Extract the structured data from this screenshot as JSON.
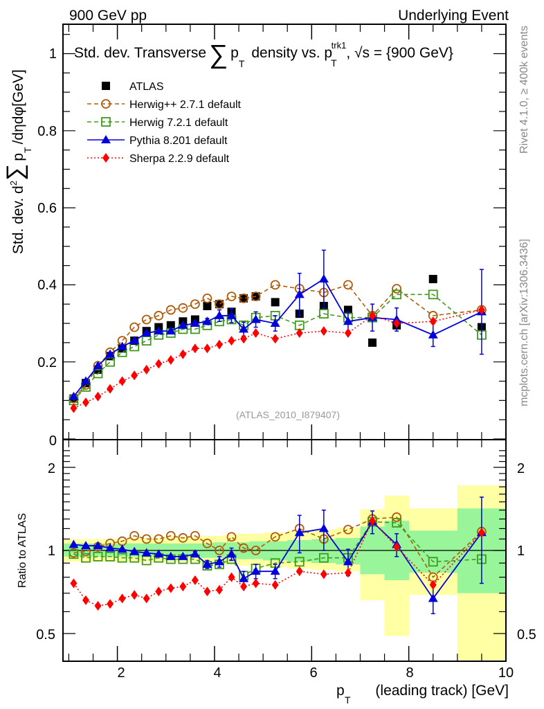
{
  "header": {
    "left": "900 GeV pp",
    "right": "Underlying Event"
  },
  "side_text": {
    "rivet": "Rivet 4.1.0, ≥ 400k events",
    "mcplots": "mcplots.cern.ch [arXiv:1306.3436]"
  },
  "chart_data": [
    {
      "type": "scatter",
      "panel": "main",
      "title": "Std. dev. Transverse ∑ p_T density vs. p_T^trk1, √s = {900 GeV}",
      "title_parts": {
        "a": "Std. dev. Transverse",
        "sum": "∑",
        "b": "p",
        "b_sub": "T",
        "c": "density vs. p",
        "c_sub": "T",
        "c_sup": "trk1",
        "d": ", √s = {900 GeV}"
      },
      "ylabel": "Std. dev. d²∑ p_T /dηdφ[GeV]",
      "ylabel_parts": {
        "a": "Std. dev. d",
        "sup": "2",
        "sum": "∑",
        "b": "p",
        "sub": "T",
        "c": "/dηdφ[GeV]"
      },
      "watermark": "(ATLAS_2010_I879407)",
      "xlim": [
        0.88,
        10.0
      ],
      "ylim": [
        0,
        1.08
      ],
      "yticks": [
        0,
        0.2,
        0.4,
        0.6,
        0.8,
        1
      ],
      "ytick_labels": [
        "0",
        "0.2",
        "0.4",
        "0.6",
        "0.8",
        "1"
      ],
      "legend_position": "top-left",
      "x": [
        1.1,
        1.35,
        1.6,
        1.85,
        2.1,
        2.35,
        2.6,
        2.85,
        3.1,
        3.35,
        3.6,
        3.85,
        4.1,
        4.35,
        4.6,
        4.85,
        5.25,
        5.75,
        6.25,
        6.75,
        7.25,
        7.75,
        8.5,
        9.5
      ],
      "series": [
        {
          "name": "ATLAS",
          "style": "data",
          "color": "#000000",
          "marker": "square-filled",
          "values": [
            0.105,
            0.145,
            0.18,
            0.215,
            0.235,
            0.255,
            0.28,
            0.29,
            0.295,
            0.305,
            0.31,
            0.345,
            0.35,
            0.33,
            0.365,
            0.37,
            0.355,
            0.325,
            0.345,
            0.335,
            0.25,
            0.295,
            0.415,
            0.29
          ]
        },
        {
          "name": "Herwig++ 2.7.1 default",
          "color": "#b05a0a",
          "marker": "circle-open",
          "line": "dashed",
          "values": [
            0.105,
            0.14,
            0.19,
            0.225,
            0.255,
            0.29,
            0.31,
            0.32,
            0.335,
            0.34,
            0.35,
            0.365,
            0.35,
            0.37,
            0.365,
            0.37,
            0.4,
            0.39,
            0.38,
            0.4,
            0.32,
            0.39,
            0.32,
            0.335
          ]
        },
        {
          "name": "Herwig 7.2.1 default",
          "color": "#3e9b1a",
          "marker": "square-open",
          "line": "dashed",
          "values": [
            0.1,
            0.135,
            0.17,
            0.2,
            0.225,
            0.24,
            0.255,
            0.27,
            0.275,
            0.285,
            0.285,
            0.295,
            0.305,
            0.31,
            0.295,
            0.315,
            0.32,
            0.295,
            0.325,
            0.315,
            0.315,
            0.375,
            0.375,
            0.27
          ]
        },
        {
          "name": "Pythia 8.201 default",
          "color": "#0000dd",
          "marker": "triangle-filled",
          "line": "solid",
          "values": [
            0.11,
            0.15,
            0.19,
            0.22,
            0.24,
            0.255,
            0.275,
            0.28,
            0.28,
            0.295,
            0.3,
            0.305,
            0.32,
            0.32,
            0.285,
            0.31,
            0.3,
            0.375,
            0.415,
            0.305,
            0.315,
            0.31,
            0.27,
            0.33
          ],
          "errors": [
            0,
            0,
            0,
            0,
            0,
            0,
            0,
            0,
            0,
            0,
            0,
            0.008,
            0.015,
            0.018,
            0.018,
            0.02,
            0.02,
            0.055,
            0.075,
            0.025,
            0.035,
            0.03,
            0.03,
            0.11
          ]
        },
        {
          "name": "Sherpa 2.2.9 default",
          "color": "#ff0000",
          "marker": "diamond-filled",
          "line": "dotted",
          "values": [
            0.08,
            0.095,
            0.11,
            0.13,
            0.15,
            0.165,
            0.18,
            0.195,
            0.205,
            0.22,
            0.235,
            0.235,
            0.245,
            0.255,
            0.26,
            0.275,
            0.26,
            0.275,
            0.28,
            0.275,
            0.32,
            0.3,
            0.305,
            0.335
          ]
        }
      ]
    },
    {
      "type": "scatter",
      "panel": "ratio",
      "ylabel": "Ratio to ATLAS",
      "xlabel": "p_T (leading track) [GeV]",
      "xlabel_parts": {
        "a": "p",
        "sub": "T",
        "b": "(leading track) [GeV]"
      },
      "xlim": [
        0.88,
        10.0
      ],
      "xticks": [
        2,
        4,
        6,
        8,
        10
      ],
      "xtick_labels": [
        "2",
        "4",
        "6",
        "8",
        "10"
      ],
      "yscale": "log",
      "ylim": [
        0.4,
        2.35
      ],
      "yticks": [
        0.5,
        1,
        2
      ],
      "ytick_labels": [
        "0.5",
        "1",
        "2"
      ],
      "bands": {
        "bins": [
          [
            0.88,
            1.2
          ],
          [
            1.2,
            1.47
          ],
          [
            1.47,
            1.72
          ],
          [
            1.72,
            1.97
          ],
          [
            1.97,
            2.22
          ],
          [
            2.22,
            2.47
          ],
          [
            2.47,
            2.72
          ],
          [
            2.72,
            2.97
          ],
          [
            2.97,
            3.22
          ],
          [
            3.22,
            3.47
          ],
          [
            3.47,
            3.72
          ],
          [
            3.72,
            3.97
          ],
          [
            3.97,
            4.22
          ],
          [
            4.22,
            4.47
          ],
          [
            4.47,
            4.72
          ],
          [
            4.72,
            5.0
          ],
          [
            5.0,
            5.5
          ],
          [
            5.5,
            6.0
          ],
          [
            6.0,
            6.5
          ],
          [
            6.5,
            7.0
          ],
          [
            7.0,
            7.5
          ],
          [
            7.5,
            8.0
          ],
          [
            8.0,
            9.0
          ],
          [
            9.0,
            10.0
          ]
        ],
        "stat": [
          [
            0.95,
            1.06
          ],
          [
            0.95,
            1.06
          ],
          [
            0.95,
            1.06
          ],
          [
            0.95,
            1.06
          ],
          [
            0.95,
            1.06
          ],
          [
            0.95,
            1.06
          ],
          [
            0.95,
            1.06
          ],
          [
            0.95,
            1.06
          ],
          [
            0.95,
            1.06
          ],
          [
            0.95,
            1.06
          ],
          [
            0.95,
            1.06
          ],
          [
            0.94,
            1.06
          ],
          [
            0.94,
            1.07
          ],
          [
            0.94,
            1.07
          ],
          [
            0.93,
            1.07
          ],
          [
            0.93,
            1.08
          ],
          [
            0.92,
            1.08
          ],
          [
            0.91,
            1.09
          ],
          [
            0.9,
            1.1
          ],
          [
            0.89,
            1.11
          ],
          [
            0.82,
            1.22
          ],
          [
            0.78,
            1.28
          ],
          [
            0.83,
            1.18
          ],
          [
            0.7,
            1.42
          ]
        ],
        "total": [
          [
            0.91,
            1.1
          ],
          [
            0.91,
            1.1
          ],
          [
            0.91,
            1.1
          ],
          [
            0.91,
            1.1
          ],
          [
            0.91,
            1.1
          ],
          [
            0.91,
            1.11
          ],
          [
            0.91,
            1.11
          ],
          [
            0.91,
            1.11
          ],
          [
            0.91,
            1.12
          ],
          [
            0.91,
            1.12
          ],
          [
            0.91,
            1.12
          ],
          [
            0.9,
            1.13
          ],
          [
            0.89,
            1.13
          ],
          [
            0.89,
            1.14
          ],
          [
            0.88,
            1.15
          ],
          [
            0.88,
            1.15
          ],
          [
            0.87,
            1.16
          ],
          [
            0.86,
            1.18
          ],
          [
            0.85,
            1.19
          ],
          [
            0.84,
            1.21
          ],
          [
            0.66,
            1.41
          ],
          [
            0.49,
            1.58
          ],
          [
            0.69,
            1.42
          ],
          [
            0.4,
            1.72
          ]
        ]
      },
      "reference_line": 1,
      "x": [
        1.1,
        1.35,
        1.6,
        1.85,
        2.1,
        2.35,
        2.6,
        2.85,
        3.1,
        3.35,
        3.6,
        3.85,
        4.1,
        4.35,
        4.6,
        4.85,
        5.25,
        5.75,
        6.25,
        6.75,
        7.25,
        7.75,
        8.5,
        9.5
      ],
      "series": [
        {
          "name": "Herwig++ 2.7.1 default",
          "color": "#b05a0a",
          "marker": "circle-open",
          "line": "dashed",
          "values": [
            0.98,
            0.99,
            1.03,
            1.06,
            1.08,
            1.13,
            1.1,
            1.1,
            1.13,
            1.11,
            1.13,
            1.06,
            1.0,
            1.12,
            1.02,
            1.0,
            1.12,
            1.2,
            1.1,
            1.19,
            1.3,
            1.32,
            0.8,
            1.17
          ]
        },
        {
          "name": "Herwig 7.2.1 default",
          "color": "#3e9b1a",
          "marker": "square-open",
          "line": "dashed",
          "values": [
            0.97,
            0.94,
            0.95,
            0.95,
            0.94,
            0.94,
            0.92,
            0.94,
            0.93,
            0.93,
            0.93,
            0.88,
            0.89,
            0.93,
            0.81,
            0.86,
            0.9,
            0.91,
            0.94,
            0.94,
            1.27,
            1.26,
            0.91,
            0.93
          ]
        },
        {
          "name": "Pythia 8.201 default",
          "color": "#0000dd",
          "marker": "triangle-filled",
          "line": "solid",
          "values": [
            1.05,
            1.04,
            1.04,
            1.02,
            1.01,
            0.99,
            0.98,
            0.97,
            0.95,
            0.95,
            0.97,
            0.89,
            0.91,
            0.97,
            0.79,
            0.84,
            0.84,
            1.16,
            1.2,
            0.91,
            1.27,
            1.05,
            0.67,
            1.16
          ],
          "errors": [
            0,
            0,
            0,
            0,
            0,
            0,
            0,
            0,
            0,
            0,
            0.02,
            0.03,
            0.04,
            0.05,
            0.05,
            0.05,
            0.05,
            0.18,
            0.2,
            0.1,
            0.12,
            0.1,
            0.08,
            0.4
          ]
        },
        {
          "name": "Sherpa 2.2.9 default",
          "color": "#ff0000",
          "marker": "diamond-filled",
          "line": "dotted",
          "values": [
            0.76,
            0.66,
            0.63,
            0.64,
            0.67,
            0.69,
            0.67,
            0.71,
            0.73,
            0.74,
            0.78,
            0.71,
            0.72,
            0.8,
            0.74,
            0.76,
            0.75,
            0.84,
            0.82,
            0.83,
            1.28,
            1.03,
            0.75,
            1.16
          ]
        }
      ]
    }
  ]
}
